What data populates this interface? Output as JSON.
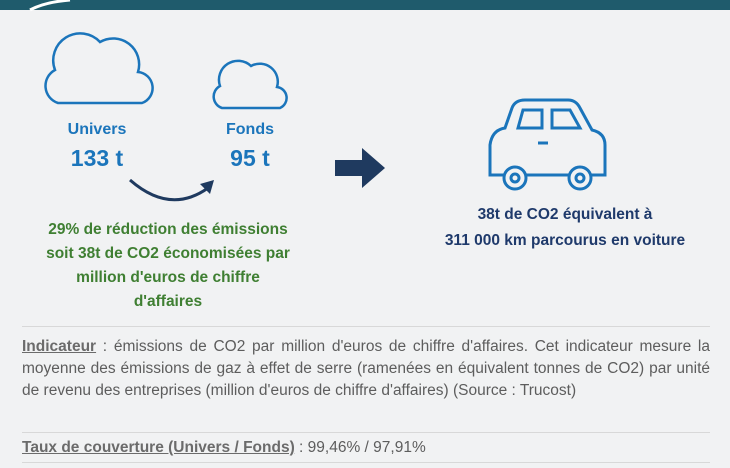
{
  "univers": {
    "label": "Univers",
    "value": "133 t"
  },
  "fonds": {
    "label": "Fonds",
    "value": "95 t"
  },
  "reduction": {
    "lines": [
      "29% de réduction des émissions",
      "soit 38t de CO2 économisées par",
      "million d'euros de chiffre",
      "d'affaires"
    ]
  },
  "equivalence": {
    "lines": [
      "38t de CO2 équivalent à",
      "311 000 km parcourus en voiture"
    ]
  },
  "indicateur": {
    "label": "Indicateur",
    "text": " : émissions de CO2 par million d'euros de chiffre d'affaires. Cet indicateur mesure la moyenne des émissions de gaz à effet de serre (ramenées en équivalent tonnes de CO2) par unité de revenu des entreprises (million d'euros de chiffre d'affaires) (Source : Trucost)"
  },
  "couverture": {
    "label": "Taux de couverture (Univers / Fonds)",
    "text": " : 99,46% / 97,91%"
  }
}
